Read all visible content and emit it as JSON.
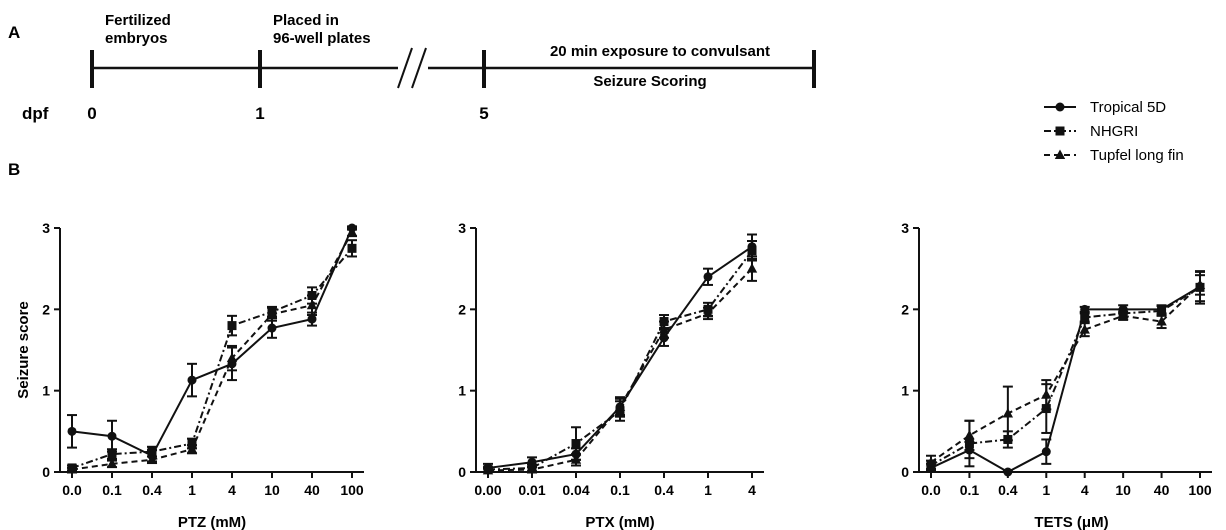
{
  "panel_a": {
    "letter": "A",
    "dpf_label": "dpf",
    "days": [
      "0",
      "1",
      "5"
    ],
    "events": [
      {
        "lines": [
          "Fertilized",
          "embryos"
        ]
      },
      {
        "lines": [
          "Placed in",
          "96-well plates"
        ]
      },
      {
        "lines": [
          "20 min exposure to convulsant"
        ]
      },
      {
        "lines": [
          "Seizure Scoring"
        ]
      }
    ]
  },
  "panel_b": {
    "letter": "B"
  },
  "legend": {
    "items": [
      {
        "label": "Tropical 5D",
        "marker": "circle",
        "dash": "solid"
      },
      {
        "label": "NHGRI",
        "marker": "square",
        "dash": "dashdot"
      },
      {
        "label": "Tupfel long fin",
        "marker": "triangle",
        "dash": "dash"
      }
    ]
  },
  "chart_data": [
    {
      "type": "line",
      "ylabel": "Seizure score",
      "xlabel": "PTZ (mM)",
      "categories": [
        "0.0",
        "0.1",
        "0.4",
        "1",
        "4",
        "10",
        "40",
        "100"
      ],
      "ylim": [
        0,
        3
      ],
      "yticks": [
        "0",
        "1",
        "2",
        "3"
      ],
      "series": [
        {
          "name": "Tropical 5D",
          "values": [
            0.5,
            0.44,
            0.2,
            1.13,
            1.33,
            1.77,
            1.88,
            3.0
          ],
          "err": [
            0.2,
            0.19,
            0.07,
            0.2,
            0.2,
            0.12,
            0.08,
            0.02
          ]
        },
        {
          "name": "NHGRI",
          "values": [
            0.05,
            0.22,
            0.25,
            0.35,
            1.8,
            1.97,
            2.17,
            2.75
          ],
          "err": [
            0.03,
            0.06,
            0.06,
            0.06,
            0.12,
            0.06,
            0.1,
            0.1
          ]
        },
        {
          "name": "Tupfel long fin",
          "values": [
            0.03,
            0.1,
            0.15,
            0.28,
            1.4,
            1.94,
            2.05,
            2.95
          ],
          "err": [
            0.02,
            0.04,
            0.04,
            0.05,
            0.15,
            0.08,
            0.12,
            0.05
          ]
        }
      ]
    },
    {
      "type": "line",
      "ylabel": "",
      "xlabel": "PTX (mM)",
      "categories": [
        "0.00",
        "0.01",
        "0.04",
        "0.1",
        "0.4",
        "1",
        "4"
      ],
      "ylim": [
        0,
        3
      ],
      "yticks": [
        "0",
        "1",
        "2",
        "3"
      ],
      "series": [
        {
          "name": "Tropical 5D",
          "values": [
            0.05,
            0.12,
            0.22,
            0.8,
            1.65,
            2.4,
            2.77
          ],
          "err": [
            0.05,
            0.06,
            0.07,
            0.12,
            0.1,
            0.1,
            0.15
          ]
        },
        {
          "name": "NHGRI",
          "values": [
            0.03,
            0.05,
            0.35,
            0.75,
            1.85,
            2.0,
            2.72
          ],
          "err": [
            0.03,
            0.04,
            0.2,
            0.12,
            0.08,
            0.08,
            0.12
          ]
        },
        {
          "name": "Tupfel long fin",
          "values": [
            0.02,
            0.03,
            0.15,
            0.8,
            1.75,
            1.95,
            2.5
          ],
          "err": [
            0.02,
            0.03,
            0.07,
            0.1,
            0.1,
            0.07,
            0.15
          ]
        }
      ]
    },
    {
      "type": "line",
      "ylabel": "",
      "xlabel": "TETS (μM)",
      "categories": [
        "0.0",
        "0.1",
        "0.4",
        "1",
        "4",
        "10",
        "40",
        "100"
      ],
      "ylim": [
        0,
        3
      ],
      "yticks": [
        "0",
        "1",
        "2",
        "3"
      ],
      "series": [
        {
          "name": "Tropical 5D",
          "values": [
            0.05,
            0.27,
            0.0,
            0.25,
            2.0,
            2.0,
            2.0,
            2.28
          ],
          "err": [
            0.05,
            0.1,
            0.02,
            0.15,
            0.03,
            0.05,
            0.05,
            0.18
          ]
        },
        {
          "name": "NHGRI",
          "values": [
            0.08,
            0.35,
            0.4,
            0.78,
            1.9,
            1.95,
            1.98,
            2.27
          ],
          "err": [
            0.06,
            0.28,
            0.1,
            0.3,
            0.05,
            0.05,
            0.06,
            0.2
          ]
        },
        {
          "name": "Tupfel long fin",
          "values": [
            0.12,
            0.45,
            0.72,
            0.95,
            1.75,
            1.92,
            1.85,
            2.3
          ],
          "err": [
            0.08,
            0.18,
            0.33,
            0.18,
            0.08,
            0.05,
            0.08,
            0.12
          ]
        }
      ]
    }
  ]
}
